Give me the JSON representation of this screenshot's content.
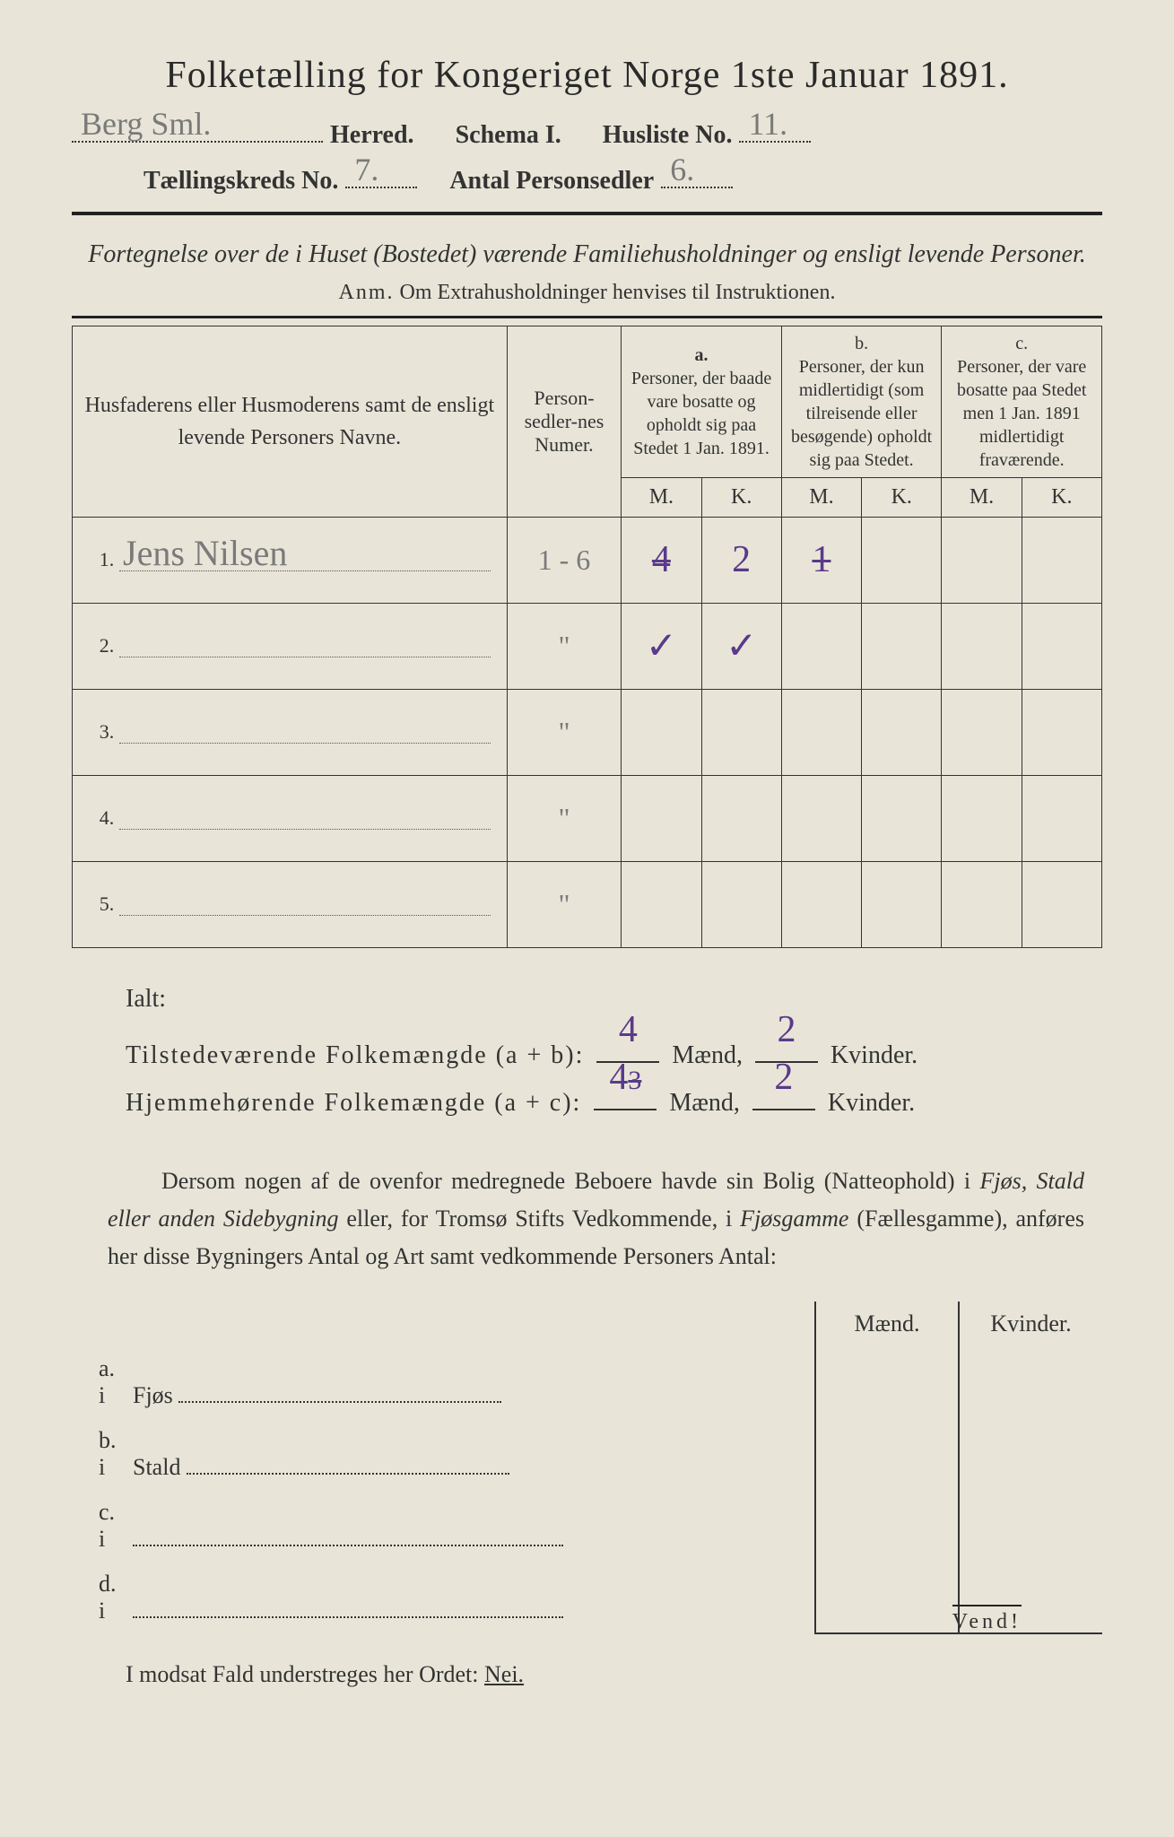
{
  "colors": {
    "paper": "#e8e5d8",
    "ink": "#2a2a2a",
    "pencil": "#7a7a7a",
    "purple": "#5a3a8a"
  },
  "title": "Folketælling for Kongeriget Norge 1ste Januar 1891.",
  "header": {
    "herred_value": "Berg Sml.",
    "herred_label": "Herred.",
    "schema_label": "Schema I.",
    "husliste_label": "Husliste No.",
    "husliste_value": "11.",
    "kreds_label": "Tællingskreds No.",
    "kreds_value": "7.",
    "personsedler_label": "Antal Personsedler",
    "personsedler_value": "6."
  },
  "subtitle": "Fortegnelse over de i Huset (Bostedet) værende Familiehusholdninger og ensligt levende Personer.",
  "anm_label": "Anm.",
  "anm_text": "Om Extrahusholdninger henvises til Instruktionen.",
  "table_headers": {
    "name": "Husfaderens eller Husmoderens samt de ensligt levende Personers Navne.",
    "numer": "Person-sedler-nes Numer.",
    "a_label": "a.",
    "a_text": "Personer, der baade vare bosatte og opholdt sig paa Stedet 1 Jan. 1891.",
    "b_label": "b.",
    "b_text": "Personer, der kun midlertidigt (som tilreisende eller besøgende) opholdt sig paa Stedet.",
    "c_label": "c.",
    "c_text": "Personer, der vare bosatte paa Stedet men 1 Jan. 1891 midlertidigt fraværende.",
    "m": "M.",
    "k": "K."
  },
  "rows": [
    {
      "num": "1.",
      "name": "Jens Nilsen",
      "numer": "1 - 6",
      "a_m": "4",
      "a_m_strike": true,
      "a_k": "2",
      "b_m": "1",
      "b_m_strike": true,
      "b_k": "",
      "c_m": "",
      "c_k": ""
    },
    {
      "num": "2.",
      "name": "",
      "numer": "\"",
      "a_m": "✓",
      "a_k": "✓",
      "b_m": "",
      "b_k": "",
      "c_m": "",
      "c_k": ""
    },
    {
      "num": "3.",
      "name": "",
      "numer": "\"",
      "a_m": "",
      "a_k": "",
      "b_m": "",
      "b_k": "",
      "c_m": "",
      "c_k": ""
    },
    {
      "num": "4.",
      "name": "",
      "numer": "\"",
      "a_m": "",
      "a_k": "",
      "b_m": "",
      "b_k": "",
      "c_m": "",
      "c_k": ""
    },
    {
      "num": "5.",
      "name": "",
      "numer": "\"",
      "a_m": "",
      "a_k": "",
      "b_m": "",
      "b_k": "",
      "c_m": "",
      "c_k": ""
    }
  ],
  "totals": {
    "ialt": "Ialt:",
    "tilstede_label": "Tilstedeværende Folkemængde (a + b):",
    "tilstede_m": "4",
    "tilstede_k": "2",
    "hjemme_label": "Hjemmehørende Folkemængde (a + c):",
    "hjemme_m": "4",
    "hjemme_m_strike": "3",
    "hjemme_k": "2",
    "maend": "Mænd,",
    "kvinder": "Kvinder."
  },
  "paragraph": {
    "text1": "Dersom nogen af de ovenfor medregnede Beboere havde sin Bolig (Natteophold) i ",
    "em1": "Fjøs, Stald eller anden Sidebygning",
    "text2": " eller, for Tromsø Stifts Vedkommende, i ",
    "em2": "Fjøsgamme",
    "text3": " (Fællesgamme), anføres her disse Bygningers Antal og Art samt vedkommende Personers Antal:"
  },
  "lower": {
    "maend": "Mænd.",
    "kvinder": "Kvinder.",
    "rows": [
      {
        "label": "a. i",
        "name": "Fjøs"
      },
      {
        "label": "b. i",
        "name": "Stald"
      },
      {
        "label": "c. i",
        "name": ""
      },
      {
        "label": "d. i",
        "name": ""
      }
    ]
  },
  "nei_line": {
    "text": "I modsat Fald understreges her Ordet: ",
    "nei": "Nei."
  },
  "vend": "Vend!"
}
